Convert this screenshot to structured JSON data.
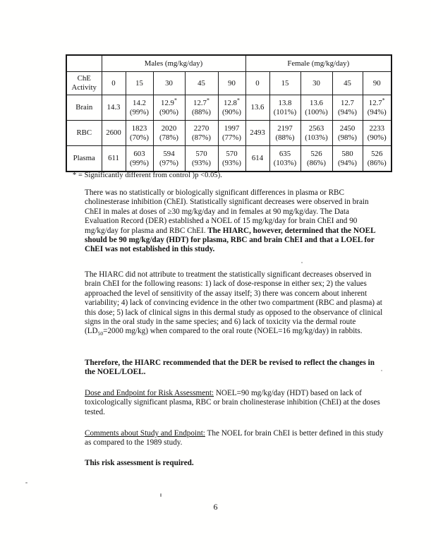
{
  "document": {
    "footnote": "* = Significantly different from control )p <0.05).",
    "page_number": "6"
  },
  "table": {
    "row_header": "ChE Activity",
    "groups": [
      {
        "label": "Males (mg/kg/day)",
        "span": 5
      },
      {
        "label": "Female (mg/kg/day)",
        "span": 5
      }
    ],
    "doses": [
      "0",
      "15",
      "30",
      "45",
      "90",
      "0",
      "15",
      "30",
      "45",
      "90"
    ],
    "significance_marker": "*",
    "rows": [
      {
        "label": "Brain",
        "cells": [
          {
            "v": "14.3"
          },
          {
            "v": "14.2",
            "pct": "(99%)"
          },
          {
            "v": "12.9",
            "star": true,
            "pct": "(90%)",
            "bold": true
          },
          {
            "v": "12.7",
            "star": true,
            "pct": "(88%)",
            "bold": true
          },
          {
            "v": "12.8",
            "star": true,
            "pct": "(90%)",
            "bold": true
          },
          {
            "v": "13.6"
          },
          {
            "v": "13.8",
            "pct": "(101%)"
          },
          {
            "v": "13.6",
            "pct": "(100%)"
          },
          {
            "v": "12.7",
            "pct": "(94%)"
          },
          {
            "v": "12.7",
            "star": true,
            "pct": "(94%)",
            "bold": true
          }
        ]
      },
      {
        "label": "RBC",
        "cells": [
          {
            "v": "2600"
          },
          {
            "v": "1823",
            "pct": "(70%)"
          },
          {
            "v": "2020",
            "pct": "(78%)"
          },
          {
            "v": "2270",
            "pct": "(87%)"
          },
          {
            "v": "1997",
            "pct": "(77%)"
          },
          {
            "v": "2493"
          },
          {
            "v": "2197",
            "pct": "(88%)"
          },
          {
            "v": "2563",
            "pct": "(103%)"
          },
          {
            "v": "2450",
            "pct": "(98%)"
          },
          {
            "v": "2233",
            "pct": "(90%)"
          }
        ]
      },
      {
        "label": "Plasma",
        "cells": [
          {
            "v": "611"
          },
          {
            "v": "603",
            "pct": "(99%)"
          },
          {
            "v": "594",
            "pct": "(97%)"
          },
          {
            "v": "570",
            "pct": "(93%)"
          },
          {
            "v": "570",
            "pct": "(93%)"
          },
          {
            "v": "614"
          },
          {
            "v": "635",
            "pct": "(103%)"
          },
          {
            "v": "526",
            "pct": "(86%)"
          },
          {
            "v": "580",
            "pct": "(94%)"
          },
          {
            "v": "526",
            "pct": "(86%)"
          }
        ]
      }
    ]
  },
  "body": [
    {
      "name": "para-1",
      "segments": [
        {
          "t": "There was no statistically or biologically significant differences in plasma or RBC cholinesterase inhibition (ChEI).  Statistically significant decreases were observed in brain ChEI in males at doses of ≥30 mg/kg/day and in females at 90 mg/kg/day. The Data Evaluation Record (DER) established a NOEL of 15 mg/kg/day for brain ChEI and 90 mg/kg/day for plasma and RBC ChEI.  "
        },
        {
          "t": "The HIARC, however, determined that the NOEL should be 90 mg/kg/day (HDT) for plasma, RBC and brain ChEI and that a LOEL for ChEI was not established in this study.",
          "b": true
        }
      ]
    },
    {
      "name": "para-2",
      "segments": [
        {
          "t": "The HIARC did not attribute to treatment the statistically significant decreases observed in brain ChEI for the following reasons: 1) lack of dose-response in either sex; 2) the values approached the level of sensitivity of the assay itself; 3) there was concern about inherent variability; 4) lack of convincing evidence in the other two compartment (RBC and plasma) at this dose; 5) lack of clinical signs in this dermal study as opposed to the observance of clinical signs in the oral study in the same species; and 6) lack of toxicity via the dermal route (LD"
        },
        {
          "t": "50",
          "sub": true
        },
        {
          "t": "=2000 mg/kg) when compared to the oral route (NOEL=16 mg/kg/day) in rabbits."
        }
      ]
    },
    {
      "name": "para-3",
      "segments": [
        {
          "t": "Therefore, the HIARC recommended that the DER be revised to reflect the changes in the NOEL/LOEL.",
          "b": true
        }
      ]
    },
    {
      "name": "para-4",
      "segments": [
        {
          "t": "Dose and Endpoint for Risk Assessment:",
          "u": true
        },
        {
          "t": "  NOEL=90 mg/kg/day (HDT) based on lack of toxicologically significant plasma, RBC or brain cholinesterase inhibition (ChEI) at the doses tested."
        }
      ]
    },
    {
      "name": "para-5",
      "segments": [
        {
          "t": "Comments about Study and Endpoint:",
          "u": true
        },
        {
          "t": " The NOEL for brain ChEI is better defined in this study as compared to the 1989 study."
        }
      ]
    },
    {
      "name": "para-6",
      "segments": [
        {
          "t": "This risk assessment is required.",
          "b": true
        }
      ]
    }
  ]
}
